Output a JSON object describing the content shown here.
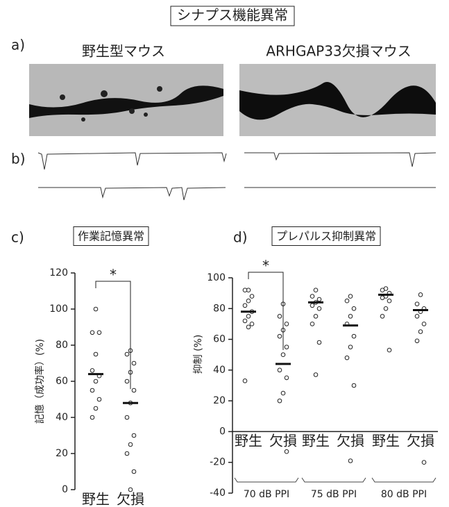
{
  "figure_title": "シナプス機能異常",
  "panel_a": {
    "label": "a)",
    "left": "野生型マウス",
    "right": "ARHGAP33欠損マウス"
  },
  "panel_b": {
    "label": "b)"
  },
  "chart_data": [
    {
      "type": "dotplot",
      "panel": "c)",
      "title": "作業記憶異常",
      "ylabel": "記憶（成功率）(%)",
      "categories": [
        "野生",
        "欠損"
      ],
      "values": [
        [
          100,
          87,
          87,
          75,
          66,
          63,
          60,
          55,
          50,
          45,
          40
        ],
        [
          77,
          75,
          70,
          65,
          60,
          55,
          48,
          40,
          30,
          25,
          20,
          10,
          0
        ]
      ],
      "means": [
        64,
        48
      ],
      "annotation": "*",
      "ylim": [
        0,
        120
      ],
      "yticks": [
        0,
        20,
        40,
        60,
        80,
        100,
        120
      ]
    },
    {
      "type": "dotplot",
      "panel": "d)",
      "title": "プレパルス抑制異常",
      "ylabel": "抑制 (%)",
      "categories": [
        "野生",
        "欠損",
        "野生",
        "欠損",
        "野生",
        "欠損"
      ],
      "group_labels": [
        "70 dB PPI",
        "75 dB PPI",
        "80 dB PPI"
      ],
      "values": [
        [
          92,
          92,
          88,
          85,
          82,
          78,
          75,
          72,
          70,
          68,
          33
        ],
        [
          83,
          75,
          70,
          66,
          62,
          55,
          50,
          40,
          35,
          25,
          20,
          -13
        ],
        [
          92,
          88,
          86,
          84,
          82,
          80,
          75,
          70,
          58,
          37
        ],
        [
          88,
          85,
          80,
          75,
          70,
          62,
          55,
          48,
          30,
          -19
        ],
        [
          93,
          92,
          90,
          88,
          87,
          85,
          80,
          75,
          53
        ],
        [
          89,
          83,
          80,
          78,
          75,
          70,
          65,
          59,
          -20
        ]
      ],
      "means": [
        78,
        44,
        84,
        69,
        89,
        79
      ],
      "annotation": "*",
      "ylim": [
        -40,
        100
      ],
      "yticks": [
        -40,
        -20,
        0,
        20,
        40,
        60,
        80,
        100
      ]
    }
  ]
}
